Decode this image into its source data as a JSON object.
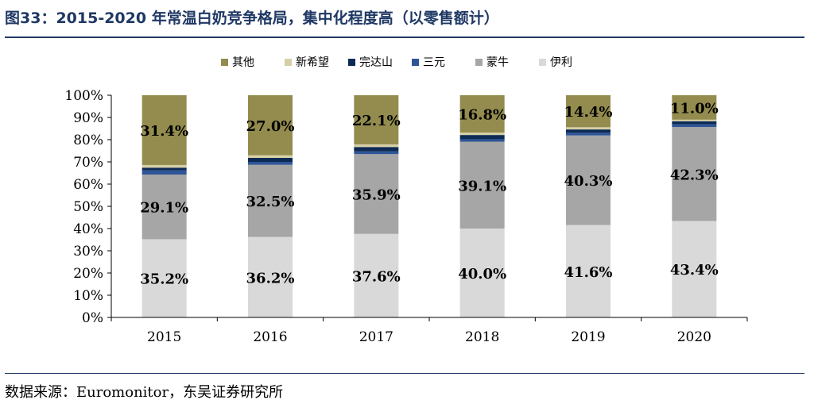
{
  "title": "图33：2015-2020 年常温白奶竞争格局，集中化程度高（以零售额计）",
  "source": "数据来源：Euromonitor，东吴证券研究所",
  "chart_data": {
    "type": "bar",
    "stacked": true,
    "categories": [
      "2015",
      "2016",
      "2017",
      "2018",
      "2019",
      "2020"
    ],
    "ylim": [
      0,
      100
    ],
    "y_tick_labels": [
      "0%",
      "10%",
      "20%",
      "30%",
      "40%",
      "50%",
      "60%",
      "70%",
      "80%",
      "90%",
      "100%"
    ],
    "legend_position": "top",
    "grid": false,
    "series": [
      {
        "name": "伊利",
        "color": "#d9d9d9",
        "values": [
          35.2,
          36.2,
          37.6,
          40.0,
          41.6,
          43.4
        ],
        "labels": [
          "35.2%",
          "36.2%",
          "37.6%",
          "40.0%",
          "41.6%",
          "43.4%"
        ]
      },
      {
        "name": "蒙牛",
        "color": "#a6a6a6",
        "values": [
          29.1,
          32.5,
          35.9,
          39.1,
          40.3,
          42.3
        ],
        "labels": [
          "29.1%",
          "32.5%",
          "35.9%",
          "39.1%",
          "40.3%",
          "42.3%"
        ]
      },
      {
        "name": "三元",
        "color": "#2e5597",
        "values": [
          1.9,
          1.3,
          1.2,
          1.1,
          1.2,
          1.2
        ]
      },
      {
        "name": "完达山",
        "color": "#0d2a55",
        "values": [
          1.2,
          1.8,
          2.0,
          1.9,
          1.5,
          1.4
        ]
      },
      {
        "name": "新希望",
        "color": "#d6cfa6",
        "values": [
          1.2,
          1.2,
          1.2,
          1.1,
          1.0,
          0.7
        ]
      },
      {
        "name": "其他",
        "color": "#938c4e",
        "values": [
          31.4,
          27.0,
          22.1,
          16.8,
          14.4,
          11.0
        ],
        "labels": [
          "31.4%",
          "27.0%",
          "22.1%",
          "16.8%",
          "14.4%",
          "11.0%"
        ]
      }
    ]
  }
}
